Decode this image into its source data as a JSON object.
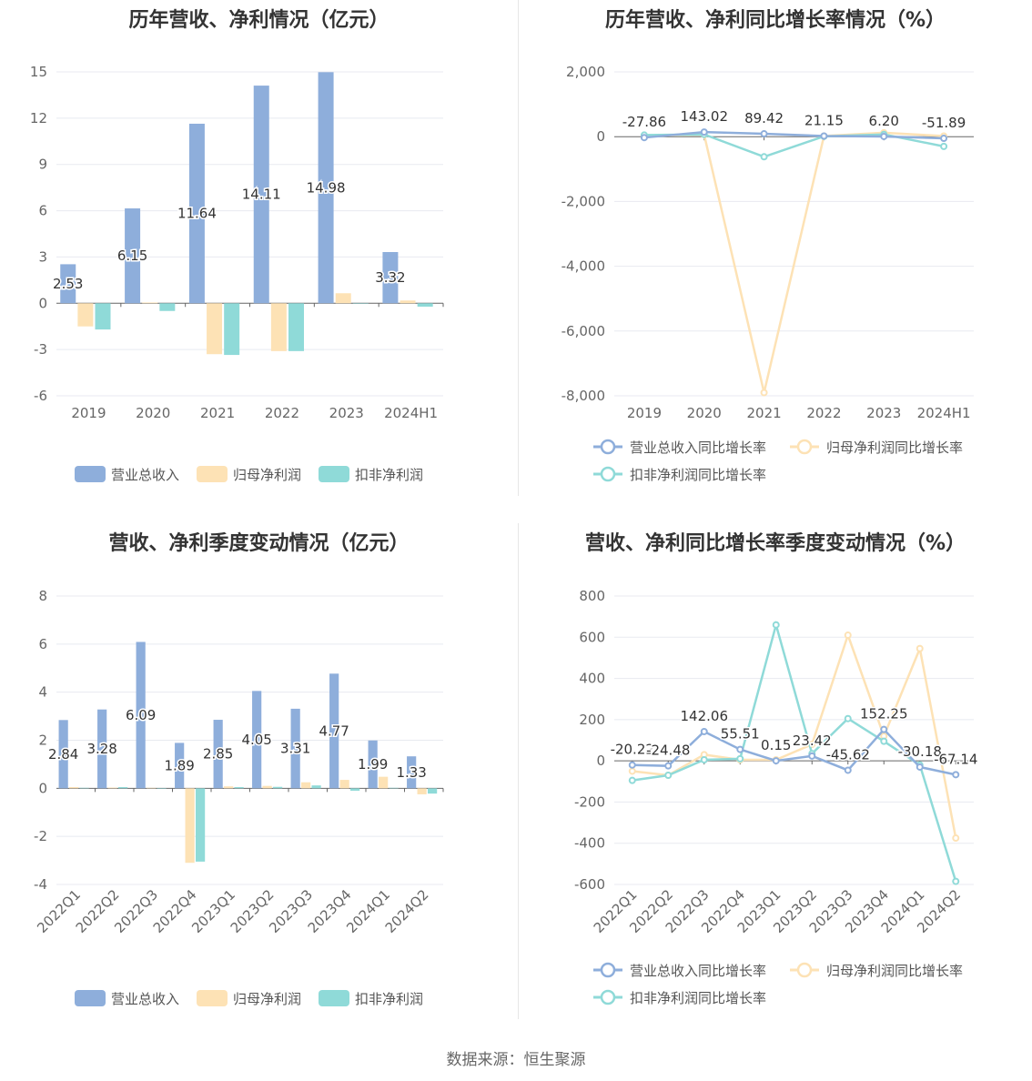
{
  "source_text": "数据来源：恒生聚源",
  "colors": {
    "revenue": "#8eaedb",
    "netprofit": "#fde2b5",
    "deducted": "#8fdad8",
    "grid": "#e8eaf0",
    "axis": "#666666",
    "label": "#333333"
  },
  "chart_data": [
    {
      "id": "annual-amount",
      "type": "bar",
      "title": "历年营收、净利情况（亿元）",
      "categories": [
        "2019",
        "2020",
        "2021",
        "2022",
        "2023",
        "2024H1"
      ],
      "ylim": [
        -6,
        15
      ],
      "yticks": [
        15,
        12,
        9,
        6,
        3,
        0,
        -3,
        -6
      ],
      "series": [
        {
          "name": "营业总收入",
          "color": "#8eaedb",
          "values": [
            2.53,
            6.15,
            11.64,
            14.11,
            14.98,
            3.32
          ],
          "labels": [
            "2.53",
            "6.15",
            "11.64",
            "14.11",
            "14.98",
            "3.32"
          ]
        },
        {
          "name": "归母净利润",
          "color": "#fde2b5",
          "values": [
            -1.5,
            0.05,
            -3.3,
            -3.1,
            0.65,
            0.18
          ]
        },
        {
          "name": "扣非净利润",
          "color": "#8fdad8",
          "values": [
            -1.7,
            -0.5,
            -3.35,
            -3.1,
            0.0,
            -0.22
          ]
        }
      ],
      "grid": true,
      "legend": "bottom"
    },
    {
      "id": "annual-growth",
      "type": "line",
      "title": "历年营收、净利同比增长率情况（%）",
      "categories": [
        "2019",
        "2020",
        "2021",
        "2022",
        "2023",
        "2024H1"
      ],
      "ylim": [
        -8000,
        2000
      ],
      "yticks": [
        "2,000",
        "0",
        "-2,000",
        "-4,000",
        "-6,000",
        "-8,000"
      ],
      "ytick_values": [
        2000,
        0,
        -2000,
        -4000,
        -6000,
        -8000
      ],
      "series": [
        {
          "name": "营业总收入同比增长率",
          "color": "#8eaedb",
          "values": [
            -27.86,
            143.02,
            89.42,
            21.15,
            6.2,
            -51.89
          ],
          "labels": [
            "-27.86",
            "143.02",
            "89.42",
            "21.15",
            "6.20",
            "-51.89"
          ]
        },
        {
          "name": "归母净利润同比增长率",
          "color": "#fde2b5",
          "values": [
            30,
            60,
            -7900,
            20,
            120,
            20
          ]
        },
        {
          "name": "扣非净利润同比增长率",
          "color": "#8fdad8",
          "values": [
            50,
            70,
            -620,
            10,
            70,
            -300
          ]
        }
      ],
      "grid": true,
      "legend": "bottom"
    },
    {
      "id": "quarterly-amount",
      "type": "bar",
      "title": "营收、净利季度变动情况（亿元）",
      "categories": [
        "2022Q1",
        "2022Q2",
        "2022Q3",
        "2022Q4",
        "2023Q1",
        "2023Q2",
        "2023Q3",
        "2023Q4",
        "2024Q1",
        "2024Q2"
      ],
      "ylim": [
        -4,
        8
      ],
      "yticks": [
        8,
        6,
        4,
        2,
        0,
        -2,
        -4
      ],
      "series": [
        {
          "name": "营业总收入",
          "color": "#8eaedb",
          "values": [
            2.84,
            3.28,
            6.09,
            1.89,
            2.85,
            4.05,
            3.31,
            4.77,
            1.99,
            1.33
          ],
          "labels": [
            "2.84",
            "3.28",
            "6.09",
            "1.89",
            "2.85",
            "4.05",
            "3.31",
            "4.77",
            "1.99",
            "1.33"
          ]
        },
        {
          "name": "归母净利润",
          "color": "#fde2b5",
          "values": [
            0.05,
            0.03,
            0.02,
            -3.1,
            0.08,
            0.1,
            0.25,
            0.35,
            0.48,
            -0.25
          ]
        },
        {
          "name": "扣非净利润",
          "color": "#8fdad8",
          "values": [
            0.02,
            0.05,
            0.0,
            -3.05,
            0.05,
            0.06,
            0.12,
            -0.1,
            0.02,
            -0.22
          ]
        }
      ],
      "grid": true,
      "legend": "bottom"
    },
    {
      "id": "quarterly-growth",
      "type": "line",
      "title": "营收、净利同比增长率季度变动情况（%）",
      "categories": [
        "2022Q1",
        "2022Q2",
        "2022Q3",
        "2022Q4",
        "2023Q1",
        "2023Q2",
        "2023Q3",
        "2023Q4",
        "2024Q1",
        "2024Q2"
      ],
      "ylim": [
        -600,
        800
      ],
      "yticks": [
        "800",
        "600",
        "400",
        "200",
        "0",
        "-200",
        "-400",
        "-600"
      ],
      "ytick_values": [
        800,
        600,
        400,
        200,
        0,
        -200,
        -400,
        -600
      ],
      "series": [
        {
          "name": "营业总收入同比增长率",
          "color": "#8eaedb",
          "values": [
            -20.22,
            -24.48,
            142.06,
            55.51,
            0.15,
            23.42,
            -45.62,
            152.25,
            -30.18,
            -67.14
          ],
          "labels": [
            "-20.22",
            "-24.48",
            "142.06",
            "55.51",
            "0.15",
            "23.42",
            "-45.62",
            "152.25",
            "-30.18",
            "-67.14"
          ]
        },
        {
          "name": "归母净利润同比增长率",
          "color": "#fde2b5",
          "values": [
            -50,
            -70,
            30,
            5,
            5,
            80,
            610,
            120,
            545,
            -375
          ]
        },
        {
          "name": "扣非净利润同比增长率",
          "color": "#8fdad8",
          "values": [
            -95,
            -70,
            5,
            10,
            660,
            35,
            205,
            95,
            -20,
            -585
          ]
        }
      ],
      "grid": true,
      "legend": "bottom"
    }
  ]
}
